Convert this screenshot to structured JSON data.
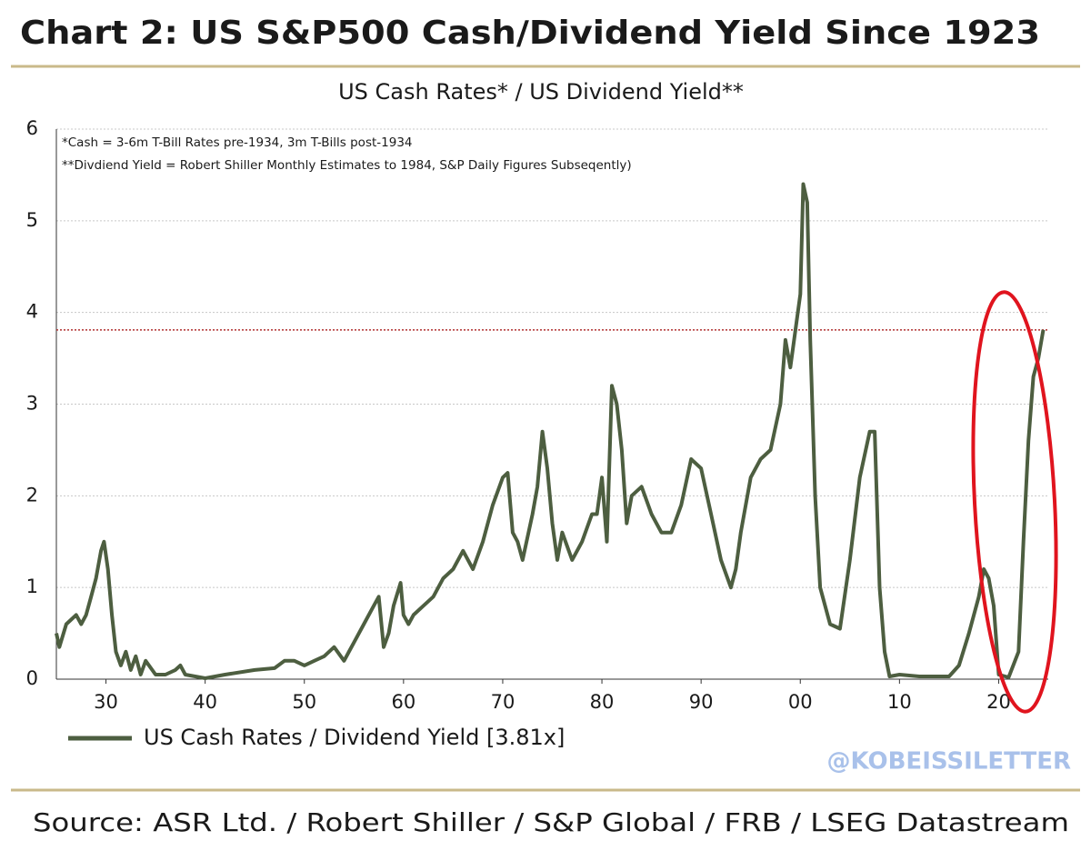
{
  "chart_data": {
    "type": "line",
    "title": "Chart 2: US S&P500 Cash/Dividend Yield Since 1923",
    "subtitle": "US Cash Rates* / US Dividend Yield**",
    "annotations": [
      "*Cash = 3-6m T-Bill Rates pre-1934, 3m T-Bills post-1934",
      "**Divdiend Yield = Robert Shiller Monthly Estimates to 1984, S&P Daily Figures Subseqently)"
    ],
    "watermark": "@KOBEISSILETTER",
    "source": "Source: ASR Ltd. / Robert Shiller / S&P Global / FRB / LSEG Datastream",
    "x": [
      1925,
      1925.3,
      1926,
      1927,
      1927.5,
      1928,
      1928.5,
      1929,
      1929.5,
      1929.8,
      1930.2,
      1930.6,
      1931,
      1931.5,
      1932,
      1932.5,
      1933,
      1933.5,
      1934,
      1935,
      1936,
      1937,
      1937.5,
      1938,
      1940,
      1942,
      1945,
      1947,
      1948,
      1949,
      1950,
      1951,
      1952,
      1953,
      1954,
      1955,
      1956,
      1957,
      1957.5,
      1958,
      1958.5,
      1959,
      1959.7,
      1960,
      1960.5,
      1961,
      1962,
      1963,
      1964,
      1965,
      1966,
      1967,
      1968,
      1969,
      1970,
      1970.5,
      1971,
      1971.5,
      1972,
      1973,
      1973.5,
      1974,
      1974.5,
      1975,
      1975.5,
      1976,
      1977,
      1978,
      1979,
      1979.5,
      1980,
      1980.5,
      1981,
      1981.5,
      1982,
      1982.5,
      1983,
      1984,
      1985,
      1986,
      1987,
      1988,
      1989,
      1990,
      1991,
      1992,
      1993,
      1993.5,
      1994,
      1995,
      1996,
      1997,
      1998,
      1998.5,
      1999,
      2000,
      2000.3,
      2000.7,
      2001,
      2001.5,
      2002,
      2003,
      2004,
      2005,
      2006,
      2007,
      2007.5,
      2008,
      2008.5,
      2009,
      2010,
      2012,
      2015,
      2016,
      2017,
      2018,
      2018.5,
      2019,
      2019.5,
      2020,
      2021,
      2022,
      2022.5,
      2023,
      2023.5,
      2024,
      2024.5
    ],
    "series": [
      {
        "name": "US Cash Rates / Dividend Yield [3.81x]",
        "color": "#4d5e40",
        "values": [
          0.5,
          0.35,
          0.6,
          0.7,
          0.6,
          0.7,
          0.9,
          1.1,
          1.4,
          1.5,
          1.2,
          0.7,
          0.3,
          0.15,
          0.3,
          0.1,
          0.25,
          0.05,
          0.2,
          0.05,
          0.05,
          0.1,
          0.15,
          0.05,
          0.01,
          0.05,
          0.1,
          0.12,
          0.2,
          0.2,
          0.15,
          0.2,
          0.25,
          0.35,
          0.2,
          0.4,
          0.6,
          0.8,
          0.9,
          0.35,
          0.5,
          0.8,
          1.05,
          0.7,
          0.6,
          0.7,
          0.8,
          0.9,
          1.1,
          1.2,
          1.4,
          1.2,
          1.5,
          1.9,
          2.2,
          2.25,
          1.6,
          1.5,
          1.3,
          1.8,
          2.1,
          2.7,
          2.3,
          1.7,
          1.3,
          1.6,
          1.3,
          1.5,
          1.8,
          1.8,
          2.2,
          1.5,
          3.2,
          3.0,
          2.5,
          1.7,
          2.0,
          2.1,
          1.8,
          1.6,
          1.6,
          1.9,
          2.4,
          2.3,
          1.8,
          1.3,
          1.0,
          1.2,
          1.6,
          2.2,
          2.4,
          2.5,
          3.0,
          3.7,
          3.4,
          4.2,
          5.4,
          5.2,
          3.7,
          2.0,
          1.0,
          0.6,
          0.55,
          1.3,
          2.2,
          2.7,
          2.7,
          1.0,
          0.3,
          0.03,
          0.05,
          0.03,
          0.03,
          0.15,
          0.5,
          0.9,
          1.2,
          1.1,
          0.8,
          0.05,
          0.02,
          0.3,
          1.5,
          2.6,
          3.3,
          3.5,
          3.81
        ]
      }
    ],
    "reference_line": {
      "value": 3.81,
      "color": "#b03030"
    },
    "xlim": [
      1925,
      2025
    ],
    "xticks": [
      {
        "value": 1930,
        "label": "30"
      },
      {
        "value": 1940,
        "label": "40"
      },
      {
        "value": 1950,
        "label": "50"
      },
      {
        "value": 1960,
        "label": "60"
      },
      {
        "value": 1970,
        "label": "70"
      },
      {
        "value": 1980,
        "label": "80"
      },
      {
        "value": 1990,
        "label": "90"
      },
      {
        "value": 2000,
        "label": "00"
      },
      {
        "value": 2010,
        "label": "10"
      },
      {
        "value": 2020,
        "label": "20"
      }
    ],
    "ylim": [
      0,
      6
    ],
    "yticks": [
      0,
      1,
      2,
      3,
      4,
      5,
      6
    ],
    "grid": true
  }
}
